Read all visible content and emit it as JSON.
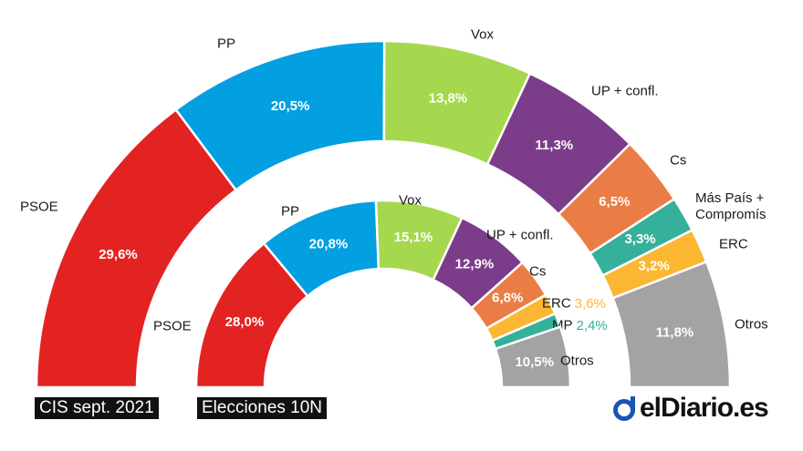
{
  "chart_data": [
    {
      "type": "pie",
      "variant": "semicircle",
      "caption": "CIS sept. 2021",
      "categories": [
        "PSOE",
        "PP",
        "Vox",
        "UP + confl.",
        "Cs",
        "Más País + Compromís",
        "ERC",
        "Otros"
      ],
      "values": [
        29.6,
        20.5,
        13.8,
        11.3,
        6.5,
        3.3,
        3.2,
        11.8
      ],
      "value_labels": [
        "29,6%",
        "20,5%",
        "13,8%",
        "11,3%",
        "6,5%",
        "3,3%",
        "3,2%",
        "11,8%"
      ],
      "colors": [
        "#e32222",
        "#02a0e1",
        "#a6d84f",
        "#7b3c8a",
        "#ea7d45",
        "#35b09a",
        "#fbb731",
        "#a3a3a3"
      ]
    },
    {
      "type": "pie",
      "variant": "semicircle",
      "caption": "Elecciones 10N",
      "categories": [
        "PSOE",
        "PP",
        "Vox",
        "UP + confl.",
        "Cs",
        "ERC",
        "MP",
        "Otros"
      ],
      "values": [
        28.0,
        20.8,
        15.1,
        12.9,
        6.8,
        3.6,
        2.4,
        10.5
      ],
      "value_labels": [
        "28,0%",
        "20,8%",
        "15,1%",
        "12,9%",
        "6,8%",
        "3,6%",
        "2,4%",
        "10,5%"
      ],
      "colors": [
        "#e32222",
        "#02a0e1",
        "#a6d84f",
        "#7b3c8a",
        "#ea7d45",
        "#fbb731",
        "#35b09a",
        "#a3a3a3"
      ]
    }
  ],
  "brand": {
    "name": "elDiario.es"
  }
}
